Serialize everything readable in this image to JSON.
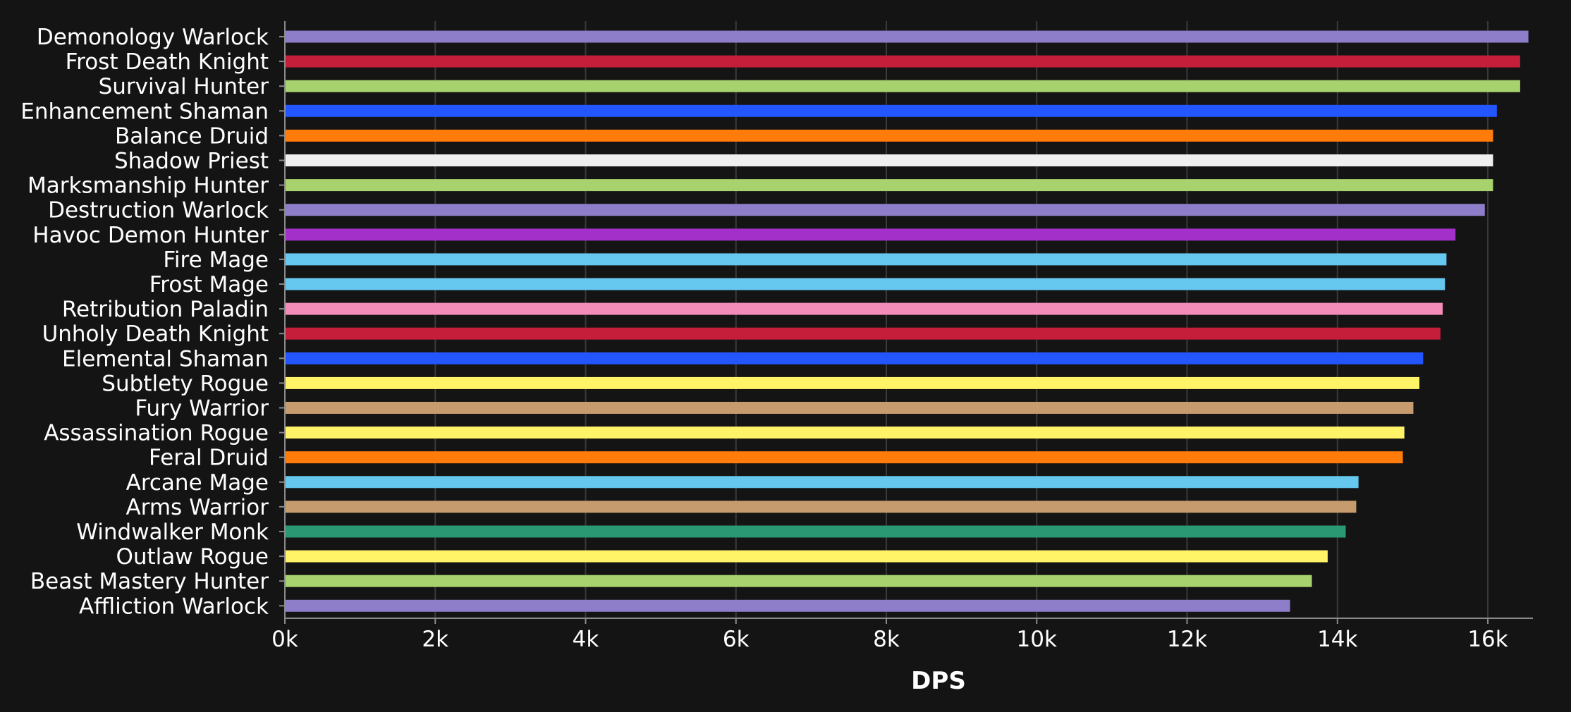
{
  "chart_data": {
    "type": "bar",
    "orientation": "horizontal",
    "title": "",
    "xlabel": "DPS",
    "ylabel": "",
    "xlim": [
      0,
      16600
    ],
    "xticks": [
      0,
      2000,
      4000,
      6000,
      8000,
      10000,
      12000,
      14000,
      16000
    ],
    "xtick_labels": [
      "0k",
      "2k",
      "4k",
      "6k",
      "8k",
      "10k",
      "12k",
      "14k",
      "16k"
    ],
    "grid": true,
    "legend": "none",
    "categories": [
      "Demonology Warlock",
      "Frost Death Knight",
      "Survival Hunter",
      "Enhancement Shaman",
      "Balance Druid",
      "Shadow Priest",
      "Marksmanship Hunter",
      "Destruction Warlock",
      "Havoc Demon Hunter",
      "Fire Mage",
      "Frost Mage",
      "Retribution Paladin",
      "Unholy Death Knight",
      "Elemental Shaman",
      "Subtlety Rogue",
      "Fury Warrior",
      "Assassination Rogue",
      "Feral Druid",
      "Arcane Mage",
      "Arms Warrior",
      "Windwalker Monk",
      "Outlaw Rogue",
      "Beast Mastery Hunter",
      "Affliction Warlock"
    ],
    "values": [
      16540,
      16430,
      16430,
      16120,
      16070,
      16070,
      16070,
      15960,
      15570,
      15450,
      15430,
      15400,
      15370,
      15140,
      15090,
      15010,
      14890,
      14870,
      14280,
      14250,
      14110,
      13870,
      13660,
      13370
    ],
    "colors": [
      "#8e7dc8",
      "#c41e3a",
      "#a8d26e",
      "#2456ff",
      "#ff7c0a",
      "#efefef",
      "#a8d26e",
      "#8e7dc8",
      "#a330c9",
      "#66c8ef",
      "#66c8ef",
      "#f48cba",
      "#c41e3a",
      "#2456ff",
      "#fff468",
      "#c69b6d",
      "#fff468",
      "#ff7c0a",
      "#66c8ef",
      "#c69b6d",
      "#2a9973",
      "#fff468",
      "#a8d26e",
      "#8e7dc8"
    ]
  },
  "colors": {
    "background": "#141414",
    "gridline": "#3a3a3a",
    "axis": "#8a8a8a",
    "text": "#ffffff"
  }
}
